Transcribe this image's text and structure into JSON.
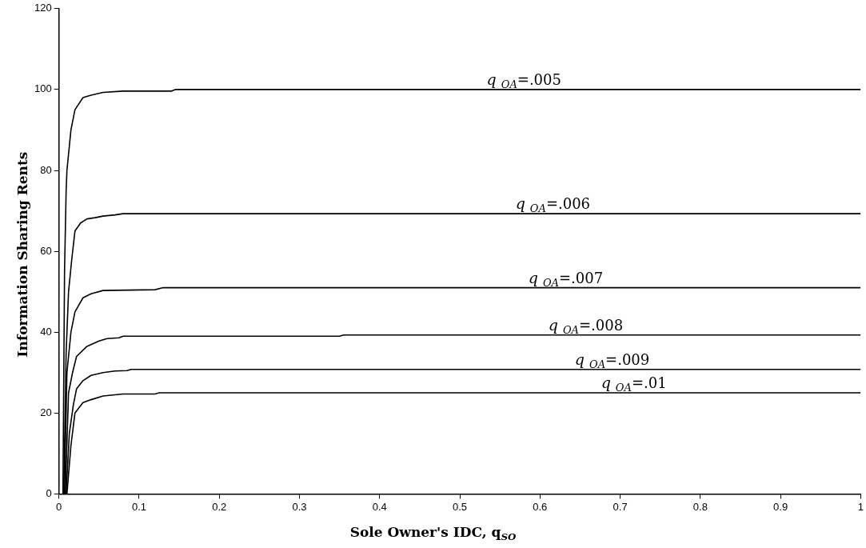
{
  "chart_data": {
    "type": "line",
    "xlabel": "Sole Owner's IDC, q$_{SO}$",
    "ylabel": "Information Sharing Rents",
    "xlim": [
      0,
      1
    ],
    "xticks": [
      0,
      0.1,
      0.2,
      0.3,
      0.4,
      0.5,
      0.6,
      0.7,
      0.8,
      0.9,
      1
    ],
    "ylim": [
      0,
      120
    ],
    "yticks": [
      0,
      20,
      40,
      60,
      80,
      100,
      120
    ],
    "grid": false,
    "legend": false,
    "marker": "none",
    "line_style": "solid",
    "series": [
      {
        "color": "#000000",
        "x": [
          0.005,
          0.007,
          0.009,
          0.01,
          0.015,
          0.02,
          0.03,
          0.04,
          0.055,
          0.08,
          0.14,
          0.145,
          1
        ],
        "values": [
          0,
          55,
          75,
          80,
          90,
          95,
          98,
          98.6,
          99.3,
          99.6,
          99.6,
          100,
          100
        ]
      },
      {
        "color": "#000000",
        "x": [
          0.006,
          0.009,
          0.012,
          0.016,
          0.02,
          0.027,
          0.035,
          0.045,
          0.055,
          0.07,
          0.08,
          1
        ],
        "values": [
          0,
          35,
          50,
          58,
          65,
          67,
          68,
          68.3,
          68.7,
          69,
          69.3,
          69.3
        ]
      },
      {
        "color": "#000000",
        "x": [
          0.007,
          0.01,
          0.015,
          0.02,
          0.03,
          0.04,
          0.055,
          0.12,
          0.13,
          1
        ],
        "values": [
          0,
          30,
          40,
          45,
          48.5,
          49.5,
          50.3,
          50.5,
          51,
          51
        ]
      },
      {
        "color": "#000000",
        "x": [
          0.008,
          0.012,
          0.017,
          0.022,
          0.035,
          0.05,
          0.06,
          0.075,
          0.08,
          0.35,
          0.355,
          1
        ],
        "values": [
          0,
          25,
          30,
          34,
          36.5,
          37.8,
          38.4,
          38.6,
          39,
          39,
          39.3,
          39.3
        ]
      },
      {
        "color": "#000000",
        "x": [
          0.009,
          0.013,
          0.018,
          0.022,
          0.03,
          0.04,
          0.055,
          0.07,
          0.085,
          0.09,
          1
        ],
        "values": [
          0,
          15,
          22,
          26,
          28,
          29.3,
          30,
          30.4,
          30.5,
          30.8,
          30.8
        ]
      },
      {
        "color": "#000000",
        "x": [
          0.01,
          0.015,
          0.02,
          0.03,
          0.04,
          0.055,
          0.08,
          0.12,
          0.125,
          1
        ],
        "values": [
          0,
          12,
          20,
          22.6,
          23.3,
          24.2,
          24.7,
          24.7,
          25,
          25
        ]
      }
    ],
    "annotations": [
      {
        "text": "q$_{OA}$=.005",
        "x": 0.58,
        "y": 100
      },
      {
        "text": "q$_{OA}$=.006",
        "x": 0.616,
        "y": 69.3
      },
      {
        "text": "q$_{OA}$=.007",
        "x": 0.632,
        "y": 51
      },
      {
        "text": "q$_{OA}$=.008",
        "x": 0.657,
        "y": 39.3
      },
      {
        "text": "q$_{OA}$=.009",
        "x": 0.69,
        "y": 30.8
      },
      {
        "text": "q$_{OA}$=.01",
        "x": 0.717,
        "y": 25
      }
    ]
  }
}
